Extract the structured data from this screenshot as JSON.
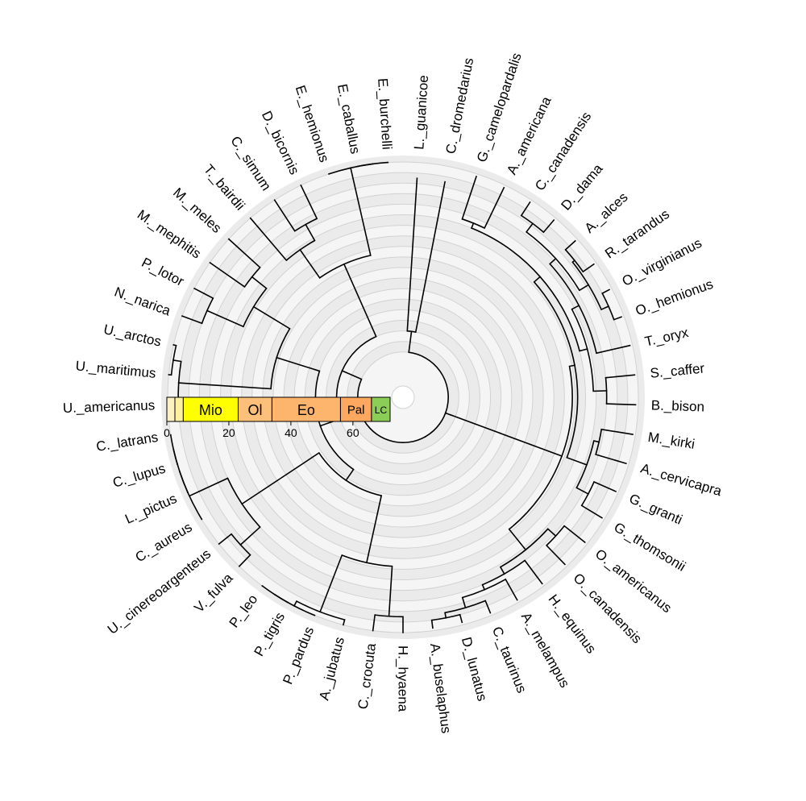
{
  "tree": {
    "max_age_ma": 80,
    "inner_age_ma": 72,
    "tips": [
      "L._guanicoe",
      "C._dromedarius",
      "G._camelopardalis",
      "A._americana",
      "C._canadensis",
      "D._dama",
      "A._alces",
      "R._tarandus",
      "O._virginianus",
      "O._hemionus",
      "T._oryx",
      "S._caffer",
      "B._bison",
      "M._kirki",
      "A._cervicapra",
      "G._granti",
      "G._thomsonii",
      "O._americanus",
      "O._canadensis",
      "H._equinus",
      "A._melampus",
      "C._taurinus",
      "D._lunatus",
      "A._buselaphus",
      "H._hyaena",
      "C._crocuta",
      "A._jubatus",
      "P._pardus",
      "P._tigris",
      "P._leo",
      "V._fulva",
      "U._cinereoargenteus",
      "C._aureus",
      "L._pictus",
      "C._lupus",
      "C._latrans",
      "U._americanus",
      "U._maritimus",
      "U._arctos",
      "N._narica",
      "P._lotor",
      "M._mephitis",
      "M._meles",
      "T._bairdii",
      "C._simum",
      "D._bicornis",
      "E._hemionus",
      "E._caballus",
      "E._burchelli"
    ],
    "newick": "(((L._guanicoe:58,C._dromedarius:58):8,((((((G._camelopardalis:17,A._americana:17):2,((((C._canadensis:6,D._dama:6):4,((A._alces:5,R._tarandus:5):1,(O._virginianus:3,O._hemionus:3):3):4):3,T._oryx:13):3,(S._caffer:11,B._bison:11):5):3):3,((M._kirki:12,A._cervicapra:12):2,(G._granti:9,G._thomsonii:9):5):8):2,((O._americanus:10,O._canadensis:10):4,(H._equinus:11,(A._melampus:9,(C._taurinus:5,(D._lunatus:3,A._buselaphus:3):2):4):2):3):10):25):20):2,(((((H._hyaena:10,C._crocuta:10):19,(A._jubatus:6,(P._pardus:4,(P._tigris:2,P._leo:2):2):2):23):26,((V._fulva:10,U._cinereoargenteus:10):10,(C._aureus:3,(L._pictus:2,(C._lupus:1,C._latrans:1):1):1):17):35):5,((U._americanus:8,(U._maritimus:5,U._arctos:5):3):35,((N._narica:12,P._lotor:12):15,(M._mephitis:20,M._meles:20):7):16):17):8,((T._bairdii:25,(C._simum:18,D._bicornis:18):7):13,(E._hemionus:2,(E._caballus:1,E._burchelli:1):1):36):30):8);"
  },
  "timescale": {
    "periods": [
      {
        "label": "",
        "start_ma": 0,
        "end_ma": 2.6,
        "color": "#fdf1bf"
      },
      {
        "label": "",
        "start_ma": 2.6,
        "end_ma": 5.3,
        "color": "#fdf0a0"
      },
      {
        "label": "Mio",
        "start_ma": 5.3,
        "end_ma": 23,
        "color": "#ffff00"
      },
      {
        "label": "Ol",
        "start_ma": 23,
        "end_ma": 33.9,
        "color": "#fdc07a"
      },
      {
        "label": "Eo",
        "start_ma": 33.9,
        "end_ma": 56,
        "color": "#fdb46c"
      },
      {
        "label": "Pal",
        "start_ma": 56,
        "end_ma": 66,
        "color": "#fda75f"
      },
      {
        "label": "LC",
        "start_ma": 66,
        "end_ma": 72,
        "color": "#8ccd57"
      }
    ],
    "ticks": [
      0,
      20,
      40,
      60
    ]
  },
  "colors": {
    "ring_a": "#ebebeb",
    "ring_b": "#f5f5f5",
    "ring_line": "#d2d2d2",
    "branch": "#000000",
    "label": "#000000"
  }
}
